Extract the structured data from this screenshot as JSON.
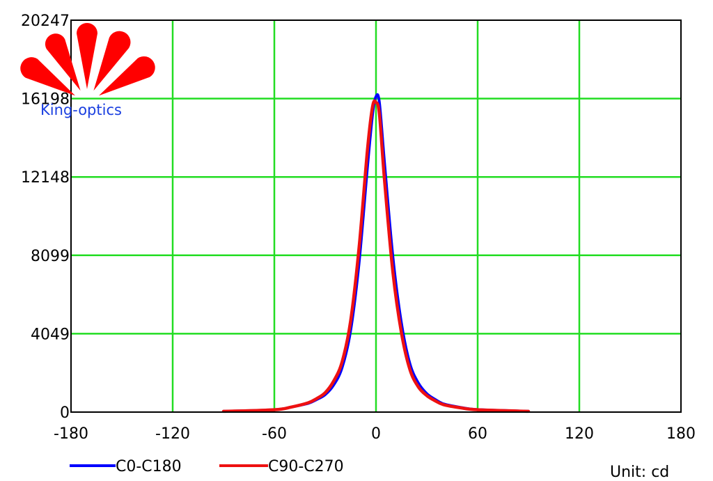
{
  "chart_data": {
    "type": "line",
    "title": "",
    "xlabel": "",
    "ylabel": "",
    "xlim": [
      -180,
      180
    ],
    "ylim": [
      0,
      20247
    ],
    "x_ticks": [
      "-180",
      "-120",
      "-60",
      "0",
      "60",
      "120",
      "180"
    ],
    "y_ticks": [
      "0",
      "4049",
      "8099",
      "12148",
      "16198",
      "20247"
    ],
    "grid": true,
    "legend_position": "bottom-left",
    "unit_label": "Unit: cd",
    "series": [
      {
        "name": "C0-C180",
        "color": "#0000ff",
        "x": [
          -90,
          -60,
          -50,
          -40,
          -35,
          -30,
          -25,
          -20,
          -15,
          -10,
          -5,
          -2,
          0,
          2,
          5,
          10,
          15,
          20,
          25,
          30,
          35,
          40,
          50,
          60,
          90
        ],
        "y": [
          40,
          120,
          260,
          450,
          650,
          900,
          1400,
          2300,
          4200,
          7700,
          12700,
          15400,
          16300,
          16000,
          12900,
          8000,
          4600,
          2500,
          1500,
          950,
          650,
          420,
          240,
          130,
          40
        ]
      },
      {
        "name": "C90-C270",
        "color": "#ee1111",
        "x": [
          -90,
          -60,
          -50,
          -40,
          -35,
          -30,
          -25,
          -20,
          -15,
          -10,
          -5,
          -2,
          0,
          2,
          5,
          10,
          15,
          20,
          25,
          30,
          35,
          40,
          50,
          60,
          90
        ],
        "y": [
          40,
          120,
          260,
          480,
          700,
          1000,
          1600,
          2600,
          4700,
          8500,
          13600,
          15800,
          16000,
          15400,
          12000,
          7200,
          4100,
          2200,
          1300,
          850,
          580,
          380,
          220,
          120,
          40
        ]
      }
    ]
  },
  "logo": {
    "text": "King-optics",
    "petal_color": "#ff0000"
  }
}
